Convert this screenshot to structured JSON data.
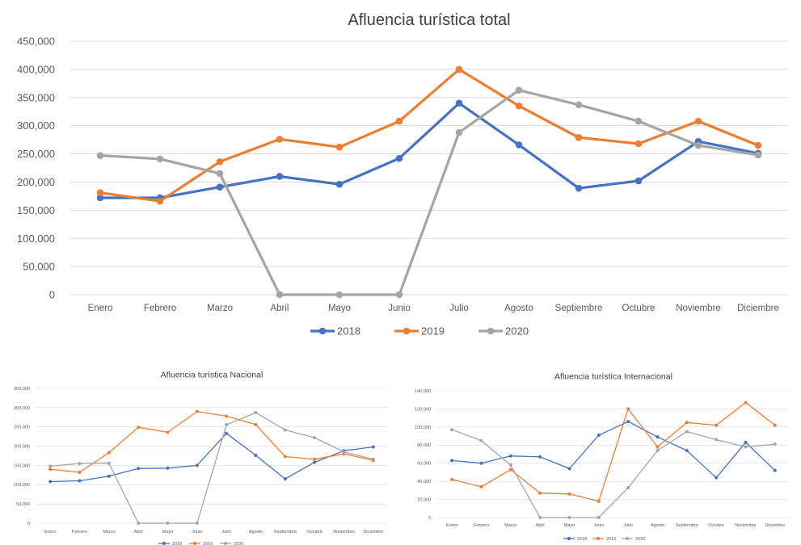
{
  "chart_data": [
    {
      "type": "line",
      "title": "Afluencia turística total",
      "categories": [
        "Enero",
        "Febrero",
        "Marzo",
        "Abril",
        "Mayo",
        "Junio",
        "Julio",
        "Agosto",
        "Septiembre",
        "Octubre",
        "Noviembre",
        "Diciembre"
      ],
      "ylim": [
        0,
        450000
      ],
      "yticks": [
        "0",
        "50,000",
        "100,000",
        "150,000",
        "200,000",
        "250,000",
        "300,000",
        "350,000",
        "400,000",
        "450,000"
      ],
      "grid": true,
      "legend": "bottom",
      "series": [
        {
          "name": "2018",
          "color": "#4472C4",
          "values": [
            172000,
            172000,
            191000,
            210000,
            196000,
            242000,
            340000,
            266000,
            189000,
            202000,
            272000,
            251000
          ]
        },
        {
          "name": "2019",
          "color": "#ED7D31",
          "values": [
            181000,
            166000,
            236000,
            276000,
            262000,
            308000,
            400000,
            335000,
            279000,
            268000,
            308000,
            265000
          ]
        },
        {
          "name": "2020",
          "color": "#A5A5A5",
          "values": [
            247000,
            241000,
            215000,
            0,
            0,
            0,
            288000,
            363000,
            337000,
            308000,
            265000,
            248000
          ]
        }
      ]
    },
    {
      "type": "line",
      "title": "Afluencia turística Nacional",
      "categories": [
        "Enero",
        "Febrero",
        "Marzo",
        "Abril",
        "Mayo",
        "Junio",
        "Julio",
        "Agosto",
        "Septiembre",
        "Octubre",
        "Noviembre",
        "Diciembre"
      ],
      "ylim": [
        0,
        350000
      ],
      "yticks": [
        "0",
        "50,000",
        "100,000",
        "150,000",
        "200,000",
        "250,000",
        "300,000",
        "350,000"
      ],
      "grid": true,
      "legend": "bottom",
      "series": [
        {
          "name": "2018",
          "color": "#4472C4",
          "values": [
            108000,
            110000,
            122000,
            142000,
            143000,
            150000,
            233000,
            176000,
            115000,
            158000,
            188000,
            198000
          ]
        },
        {
          "name": "2019",
          "color": "#ED7D31",
          "values": [
            140000,
            132000,
            183000,
            249000,
            236000,
            290000,
            278000,
            256000,
            173000,
            166000,
            180000,
            163000
          ]
        },
        {
          "name": "2020",
          "color": "#A5A5A5",
          "values": [
            148000,
            155000,
            156000,
            0,
            0,
            0,
            256000,
            287000,
            242000,
            222000,
            185000,
            166000
          ]
        }
      ]
    },
    {
      "type": "line",
      "title": "Afluencia turística Internacional",
      "categories": [
        "Enero",
        "Febrero",
        "Marzo",
        "Abril",
        "Mayo",
        "Junio",
        "Julio",
        "Agosto",
        "Septiembre",
        "Octubre",
        "Noviembre",
        "Diciembre"
      ],
      "ylim": [
        0,
        140000
      ],
      "yticks": [
        "0",
        "20,000",
        "40,000",
        "60,000",
        "80,000",
        "100,000",
        "120,000",
        "140,000"
      ],
      "grid": true,
      "legend": "bottom",
      "series": [
        {
          "name": "2018",
          "color": "#4472C4",
          "values": [
            63000,
            60000,
            68000,
            67000,
            54000,
            91000,
            106000,
            89000,
            74000,
            44000,
            83000,
            52000
          ]
        },
        {
          "name": "2019",
          "color": "#ED7D31",
          "values": [
            42000,
            34000,
            53000,
            27000,
            26000,
            18000,
            120000,
            78000,
            105000,
            102000,
            127000,
            102000
          ]
        },
        {
          "name": "2020",
          "color": "#A5A5A5",
          "values": [
            97000,
            85000,
            58000,
            0,
            0,
            0,
            33000,
            74000,
            95000,
            86000,
            78000,
            81000
          ]
        }
      ]
    }
  ]
}
